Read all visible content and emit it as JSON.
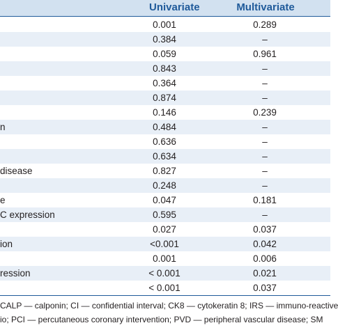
{
  "header": {
    "univariate": "Univariate",
    "multivariate": "Multivariate"
  },
  "rows": [
    {
      "label": "",
      "uni": "0.001",
      "multi": "0.289"
    },
    {
      "label": "",
      "uni": "0.384",
      "multi": "–"
    },
    {
      "label": "",
      "uni": "0.059",
      "multi": "0.961"
    },
    {
      "label": "",
      "uni": "0.843",
      "multi": "–"
    },
    {
      "label": "",
      "uni": "0.364",
      "multi": "–"
    },
    {
      "label": "",
      "uni": "0.874",
      "multi": "–"
    },
    {
      "label": "",
      "uni": "0.146",
      "multi": "0.239"
    },
    {
      "label": "n",
      "uni": "0.484",
      "multi": "–"
    },
    {
      "label": "",
      "uni": "0.636",
      "multi": "–"
    },
    {
      "label": "",
      "uni": "0.634",
      "multi": "–"
    },
    {
      "label": "disease",
      "uni": "0.827",
      "multi": "–"
    },
    {
      "label": "",
      "uni": "0.248",
      "multi": "–"
    },
    {
      "label": "e",
      "uni": "0.047",
      "multi": "0.181"
    },
    {
      "label": "C expression",
      "uni": "0.595",
      "multi": "–"
    },
    {
      "label": "",
      "uni": "0.027",
      "multi": "0.037"
    },
    {
      "label": "ion",
      "uni": "<0.001",
      "multi": "0.042"
    },
    {
      "label": "",
      "uni": "0.001",
      "multi": "0.006"
    },
    {
      "label": "ression",
      "uni": "< 0.001",
      "multi": "0.021"
    },
    {
      "label": "",
      "uni": "< 0.001",
      "multi": "0.037"
    }
  ],
  "footnote": {
    "line1": "CALP — calponin; CI — confidential interval; CK8 — cytokeratin 8; IRS — immuno-reactive",
    "line2": "io; PCI — percutaneous coronary intervention; PVD — peripheral vascular disease; SM"
  },
  "colors": {
    "header_bg": "#d2e1f0",
    "header_text": "#1f5a9a",
    "row_shade": "#e8eff7"
  }
}
